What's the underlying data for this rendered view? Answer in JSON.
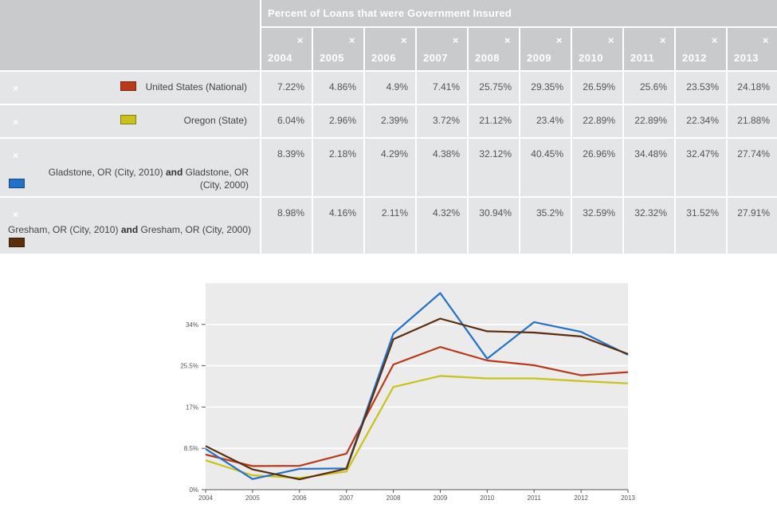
{
  "table": {
    "title": "Percent of Loans that were Government Insured",
    "remove_glyph": "×",
    "years": [
      "2004",
      "2005",
      "2006",
      "2007",
      "2008",
      "2009",
      "2010",
      "2011",
      "2012",
      "2013"
    ],
    "rows": [
      {
        "label_pre": "United States (National)",
        "conj": "",
        "label_post": "",
        "color": "#b83a1b",
        "values": [
          "7.22%",
          "4.86%",
          "4.9%",
          "7.41%",
          "25.75%",
          "29.35%",
          "26.59%",
          "25.6%",
          "23.53%",
          "24.18%"
        ]
      },
      {
        "label_pre": "Oregon (State)",
        "conj": "",
        "label_post": "",
        "color": "#c8c21a",
        "values": [
          "6.04%",
          "2.96%",
          "2.39%",
          "3.72%",
          "21.12%",
          "23.4%",
          "22.89%",
          "22.89%",
          "22.34%",
          "21.88%"
        ]
      },
      {
        "label_pre": "Gladstone, OR (City, 2010)",
        "conj": "and",
        "label_post": "Gladstone, OR (City, 2000)",
        "color": "#2271c8",
        "values": [
          "8.39%",
          "2.18%",
          "4.29%",
          "4.38%",
          "32.12%",
          "40.45%",
          "26.96%",
          "34.48%",
          "32.47%",
          "27.74%"
        ]
      },
      {
        "label_pre": "Gresham, OR (City, 2010)",
        "conj": "and",
        "label_post": "Gresham, OR (City, 2000)",
        "color": "#5a2d0c",
        "values": [
          "8.98%",
          "4.16%",
          "2.11%",
          "4.32%",
          "30.94%",
          "35.2%",
          "32.59%",
          "32.32%",
          "31.52%",
          "27.91%"
        ]
      }
    ]
  },
  "chart_data": {
    "type": "line",
    "x": [
      2004,
      2005,
      2006,
      2007,
      2008,
      2009,
      2010,
      2011,
      2012,
      2013
    ],
    "ylim": [
      0,
      42.5
    ],
    "yticks": [
      0,
      8.5,
      17,
      25.5,
      34
    ],
    "ytick_labels": [
      "0%",
      "8.5%",
      "17%",
      "25.5%",
      "34%"
    ],
    "xtick_labels": [
      "2004",
      "2005",
      "2006",
      "2007",
      "2008",
      "2009",
      "2010",
      "2011",
      "2012",
      "2013"
    ],
    "grid": true,
    "background": "#ebebeb",
    "series": [
      {
        "name": "United States (National)",
        "color": "#b83a1b",
        "values": [
          7.22,
          4.86,
          4.9,
          7.41,
          25.75,
          29.35,
          26.59,
          25.6,
          23.53,
          24.18
        ]
      },
      {
        "name": "Oregon (State)",
        "color": "#c8c21a",
        "values": [
          6.04,
          2.96,
          2.39,
          3.72,
          21.12,
          23.4,
          22.89,
          22.89,
          22.34,
          21.88
        ]
      },
      {
        "name": "Gladstone, OR (City, 2010) and Gladstone, OR (City, 2000)",
        "color": "#2271c8",
        "values": [
          8.39,
          2.18,
          4.29,
          4.38,
          32.12,
          40.45,
          26.96,
          34.48,
          32.47,
          27.74
        ]
      },
      {
        "name": "Gresham, OR (City, 2010) and Gresham, OR (City, 2000)",
        "color": "#5a2d0c",
        "values": [
          8.98,
          4.16,
          2.11,
          4.32,
          30.94,
          35.2,
          32.59,
          32.32,
          31.52,
          27.91
        ]
      }
    ]
  }
}
